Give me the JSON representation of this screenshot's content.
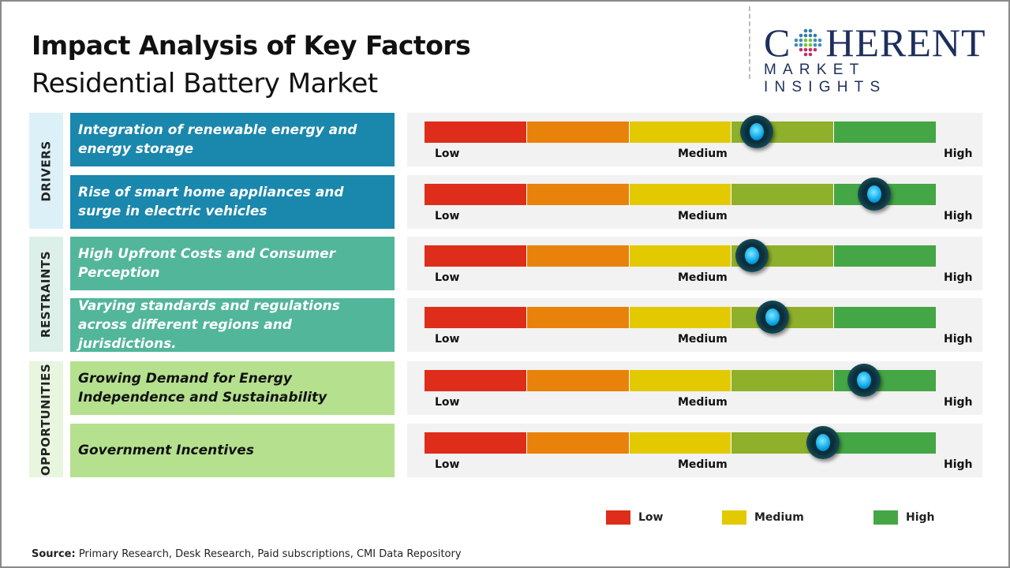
{
  "title": "Impact Analysis of Key Factors",
  "subtitle": "Residential Battery Market",
  "logo": {
    "line1_a": "C",
    "line1_b": "HERENT",
    "line2": "MARKET INSIGHTS"
  },
  "colors": {
    "low": "#de2d1a",
    "low_mid": "#e9820a",
    "medium": "#e3c900",
    "mid_high": "#8fb02a",
    "high": "#44a644",
    "drivers": "#1a87ad",
    "restraints": "#52b69a",
    "opportunities": "#b5e08e"
  },
  "chart_data": {
    "type": "gauge",
    "scale_labels": [
      "Low",
      "Medium",
      "High"
    ],
    "groups": [
      {
        "name": "DRIVERS",
        "factors": [
          {
            "label": "Integration of renewable energy and energy storage",
            "level": 0.65
          },
          {
            "label": "Rise of smart home appliances and surge in electric vehicles",
            "level": 0.88
          }
        ]
      },
      {
        "name": "RESTRAINTS",
        "factors": [
          {
            "label": "High Upfront Costs and Consumer Perception",
            "level": 0.64
          },
          {
            "label": "Varying standards and regulations across different regions and jurisdictions.",
            "level": 0.68
          }
        ]
      },
      {
        "name": "OPPORTUNITIES",
        "factors": [
          {
            "label": "Growing Demand for Energy Independence and Sustainability",
            "level": 0.86
          },
          {
            "label": "Government Incentives",
            "level": 0.78
          }
        ]
      }
    ],
    "legend": [
      {
        "label": "Low",
        "color": "#de2d1a"
      },
      {
        "label": "Medium",
        "color": "#e3c900"
      },
      {
        "label": "High",
        "color": "#44a644"
      }
    ]
  },
  "source": {
    "label": "Source:",
    "text": " Primary Research, Desk Research, Paid subscriptions, CMI Data Repository"
  }
}
